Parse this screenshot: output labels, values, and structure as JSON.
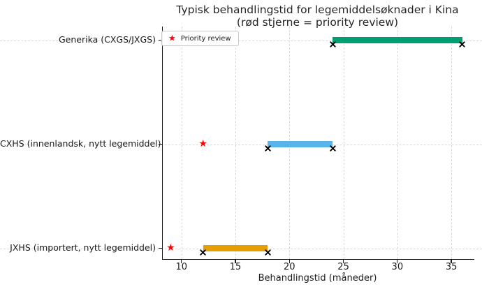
{
  "figure": {
    "title_line1": "Typisk behandlingstid for legemiddelsøknader i Kina",
    "title_line2": "(rød stjerne = priority review)"
  },
  "legend": {
    "label": "Priority review",
    "marker": "star",
    "marker_color": "#ff0000",
    "position": "upper left"
  },
  "chart_data": {
    "type": "bar",
    "subtype": "horizontal-range-bar",
    "title": "Typisk behandlingstid for legemiddelsøknader i Kina (rød stjerne = priority review)",
    "xlabel": "Behandlingstid (måneder)",
    "ylabel": "",
    "x_ticks": [
      10,
      15,
      20,
      25,
      30,
      35
    ],
    "xlim": [
      8.2,
      37.0
    ],
    "grid": "both-dashed",
    "categories": [
      "Generika (CXGS/JXGS)",
      "CXHS (innenlandsk, nytt legemiddel)",
      "JXHS (importert, nytt legemiddel)"
    ],
    "series": [
      {
        "category": "Generika (CXGS/JXGS)",
        "range_months": [
          24,
          36
        ],
        "color": "#009e73",
        "priority_review_months": null
      },
      {
        "category": "CXHS (innenlandsk, nytt legemiddel)",
        "range_months": [
          18,
          24
        ],
        "color": "#56b4e9",
        "priority_review_months": 12
      },
      {
        "category": "JXHS (importert, nytt legemiddel)",
        "range_months": [
          12,
          18
        ],
        "color": "#e69f00",
        "priority_review_months": 9
      }
    ],
    "end_marker": "x",
    "end_marker_color": "#000000",
    "priority_marker": "star",
    "priority_marker_color": "#ff0000"
  }
}
